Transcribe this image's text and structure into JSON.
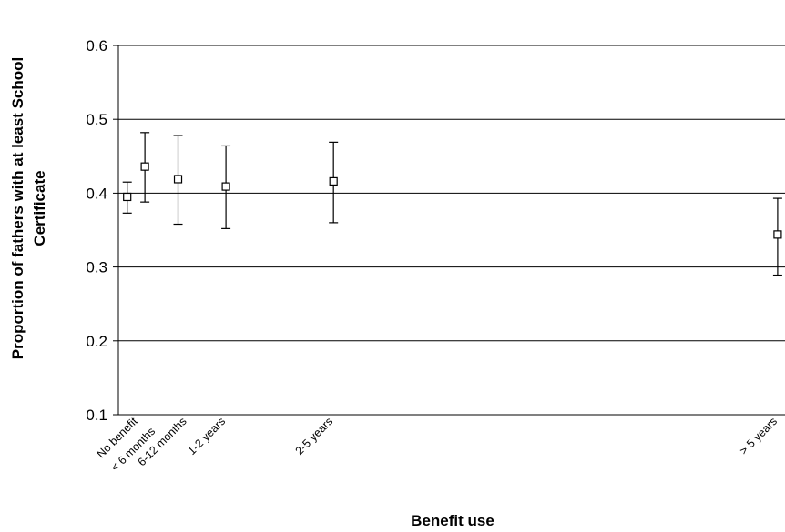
{
  "chart_data": {
    "type": "scatter",
    "title": "",
    "xlabel": "Benefit use",
    "ylabel_lines": [
      "Proportion of fathers with at least School",
      "Certificate"
    ],
    "ylim": [
      0.1,
      0.6
    ],
    "yticks": [
      0.1,
      0.2,
      0.3,
      0.4,
      0.5,
      0.6
    ],
    "ytick_labels": [
      "0.1",
      "0.2",
      "0.3",
      "0.4",
      "0.5",
      "0.6"
    ],
    "grid": true,
    "x_unit": "years of benefit use",
    "xlim": [
      0,
      9.05
    ],
    "categories": [
      "No benefit",
      "< 6 months",
      "6-12 months",
      "1-2 years",
      "2-5 years",
      "> 5 years"
    ],
    "x": [
      0.12,
      0.36,
      0.81,
      1.46,
      2.92,
      8.95
    ],
    "values": [
      0.395,
      0.436,
      0.419,
      0.409,
      0.416,
      0.344
    ],
    "error_low": [
      0.373,
      0.388,
      0.358,
      0.352,
      0.36,
      0.289
    ],
    "error_high": [
      0.415,
      0.482,
      0.478,
      0.464,
      0.469,
      0.393
    ]
  }
}
